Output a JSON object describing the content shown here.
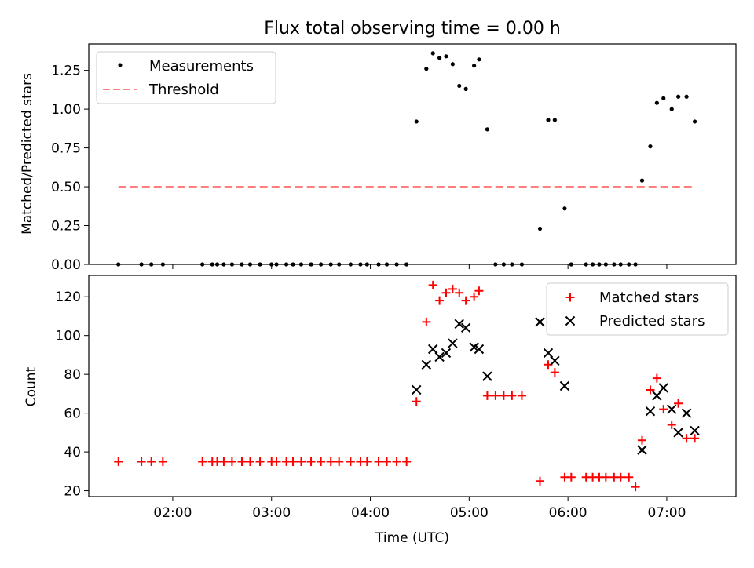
{
  "title": "Flux total observing time = 0.00 h",
  "colors": {
    "measurement": "#000000",
    "threshold": "#ff7f7f",
    "matched": "#ff0000",
    "predicted": "#000000"
  },
  "chart_data": [
    {
      "type": "scatter",
      "title": "Flux total observing time = 0.00 h",
      "xlabel": "",
      "ylabel": "Matched/Predicted stars",
      "xlim": [
        "01:09",
        "07:42"
      ],
      "ylim": [
        0,
        1.42
      ],
      "yticks": [
        "0.00",
        "0.25",
        "0.50",
        "0.75",
        "1.00",
        "1.25"
      ],
      "ytick_values": [
        0,
        0.25,
        0.5,
        0.75,
        1.0,
        1.25
      ],
      "grid": false,
      "legend": "top-left",
      "series": [
        {
          "name": "Measurements",
          "marker": "dot",
          "x": [
            "01:27",
            "01:41",
            "01:47",
            "01:54",
            "02:18",
            "02:24",
            "02:27",
            "02:31",
            "02:36",
            "02:42",
            "02:47",
            "02:53",
            "03:00",
            "03:03",
            "03:09",
            "03:13",
            "03:18",
            "03:24",
            "03:30",
            "03:36",
            "03:41",
            "03:48",
            "03:54",
            "03:58",
            "04:05",
            "04:10",
            "04:16",
            "04:22",
            "04:28",
            "04:34",
            "04:38",
            "04:42",
            "04:46",
            "04:50",
            "04:54",
            "04:58",
            "05:03",
            "05:06",
            "05:11",
            "05:16",
            "05:21",
            "05:26",
            "05:32",
            "05:43",
            "05:48",
            "05:52",
            "05:58",
            "06:02",
            "06:11",
            "06:15",
            "06:19",
            "06:23",
            "06:28",
            "06:32",
            "06:37",
            "06:41",
            "06:45",
            "06:50",
            "06:54",
            "06:58",
            "07:03",
            "07:07",
            "07:12",
            "07:17"
          ],
          "y": [
            0,
            0,
            0,
            0,
            0,
            0,
            0,
            0,
            0,
            0,
            0,
            0,
            0,
            0,
            0,
            0,
            0,
            0,
            0,
            0,
            0,
            0,
            0,
            0,
            0,
            0,
            0,
            0,
            0.92,
            1.26,
            1.36,
            1.33,
            1.34,
            1.29,
            1.15,
            1.13,
            1.28,
            1.32,
            0.87,
            0,
            0,
            0,
            0,
            0.23,
            0.93,
            0.93,
            0.36,
            0,
            0,
            0,
            0,
            0,
            0,
            0,
            0,
            0,
            0.54,
            0.76,
            1.04,
            1.07,
            1.0,
            1.08,
            1.08,
            0.92
          ]
        },
        {
          "name": "Threshold",
          "marker": "dashed-line",
          "x": [
            "01:27",
            "07:17"
          ],
          "y": [
            0.5,
            0.5
          ]
        }
      ]
    },
    {
      "type": "scatter",
      "title": "",
      "xlabel": "Time (UTC)",
      "ylabel": "Count",
      "xlim": [
        "01:09",
        "07:42"
      ],
      "ylim": [
        17,
        131
      ],
      "yticks": [
        "20",
        "40",
        "60",
        "80",
        "100",
        "120"
      ],
      "ytick_values": [
        20,
        40,
        60,
        80,
        100,
        120
      ],
      "xticks": [
        "02:00",
        "03:00",
        "04:00",
        "05:00",
        "06:00",
        "07:00"
      ],
      "grid": false,
      "legend": "top-right",
      "series": [
        {
          "name": "Matched stars",
          "marker": "plus",
          "x": [
            "01:27",
            "01:41",
            "01:47",
            "01:54",
            "02:18",
            "02:24",
            "02:27",
            "02:31",
            "02:36",
            "02:42",
            "02:47",
            "02:53",
            "03:00",
            "03:03",
            "03:09",
            "03:13",
            "03:18",
            "03:24",
            "03:30",
            "03:36",
            "03:41",
            "03:48",
            "03:54",
            "03:58",
            "04:05",
            "04:10",
            "04:16",
            "04:22",
            "04:28",
            "04:34",
            "04:38",
            "04:42",
            "04:46",
            "04:50",
            "04:54",
            "04:58",
            "05:03",
            "05:06",
            "05:11",
            "05:16",
            "05:21",
            "05:26",
            "05:32",
            "05:43",
            "05:48",
            "05:52",
            "05:58",
            "06:02",
            "06:11",
            "06:15",
            "06:19",
            "06:23",
            "06:28",
            "06:32",
            "06:37",
            "06:41",
            "06:45",
            "06:50",
            "06:54",
            "06:58",
            "07:03",
            "07:07",
            "07:12",
            "07:17"
          ],
          "y": [
            35,
            35,
            35,
            35,
            35,
            35,
            35,
            35,
            35,
            35,
            35,
            35,
            35,
            35,
            35,
            35,
            35,
            35,
            35,
            35,
            35,
            35,
            35,
            35,
            35,
            35,
            35,
            35,
            66,
            107,
            126,
            118,
            122,
            124,
            122,
            118,
            120,
            123,
            69,
            69,
            69,
            69,
            69,
            25,
            85,
            81,
            27,
            27,
            27,
            27,
            27,
            27,
            27,
            27,
            27,
            22,
            46,
            72,
            78,
            62,
            54,
            65,
            47,
            47
          ]
        },
        {
          "name": "Predicted stars",
          "marker": "x",
          "x": [
            "04:28",
            "04:34",
            "04:38",
            "04:42",
            "04:46",
            "04:50",
            "04:54",
            "04:58",
            "05:03",
            "05:06",
            "05:11",
            "05:43",
            "05:48",
            "05:52",
            "05:58",
            "06:45",
            "06:50",
            "06:54",
            "06:58",
            "07:03",
            "07:07",
            "07:12",
            "07:17"
          ],
          "y": [
            72,
            85,
            93,
            89,
            91,
            96,
            106,
            104,
            94,
            93,
            79,
            107,
            91,
            87,
            74,
            41,
            61,
            69,
            73,
            62,
            50,
            60,
            51
          ]
        }
      ]
    }
  ],
  "legend_top": {
    "measurements": "Measurements",
    "threshold": "Threshold"
  },
  "legend_bottom": {
    "matched": "Matched stars",
    "predicted": "Predicted stars"
  }
}
